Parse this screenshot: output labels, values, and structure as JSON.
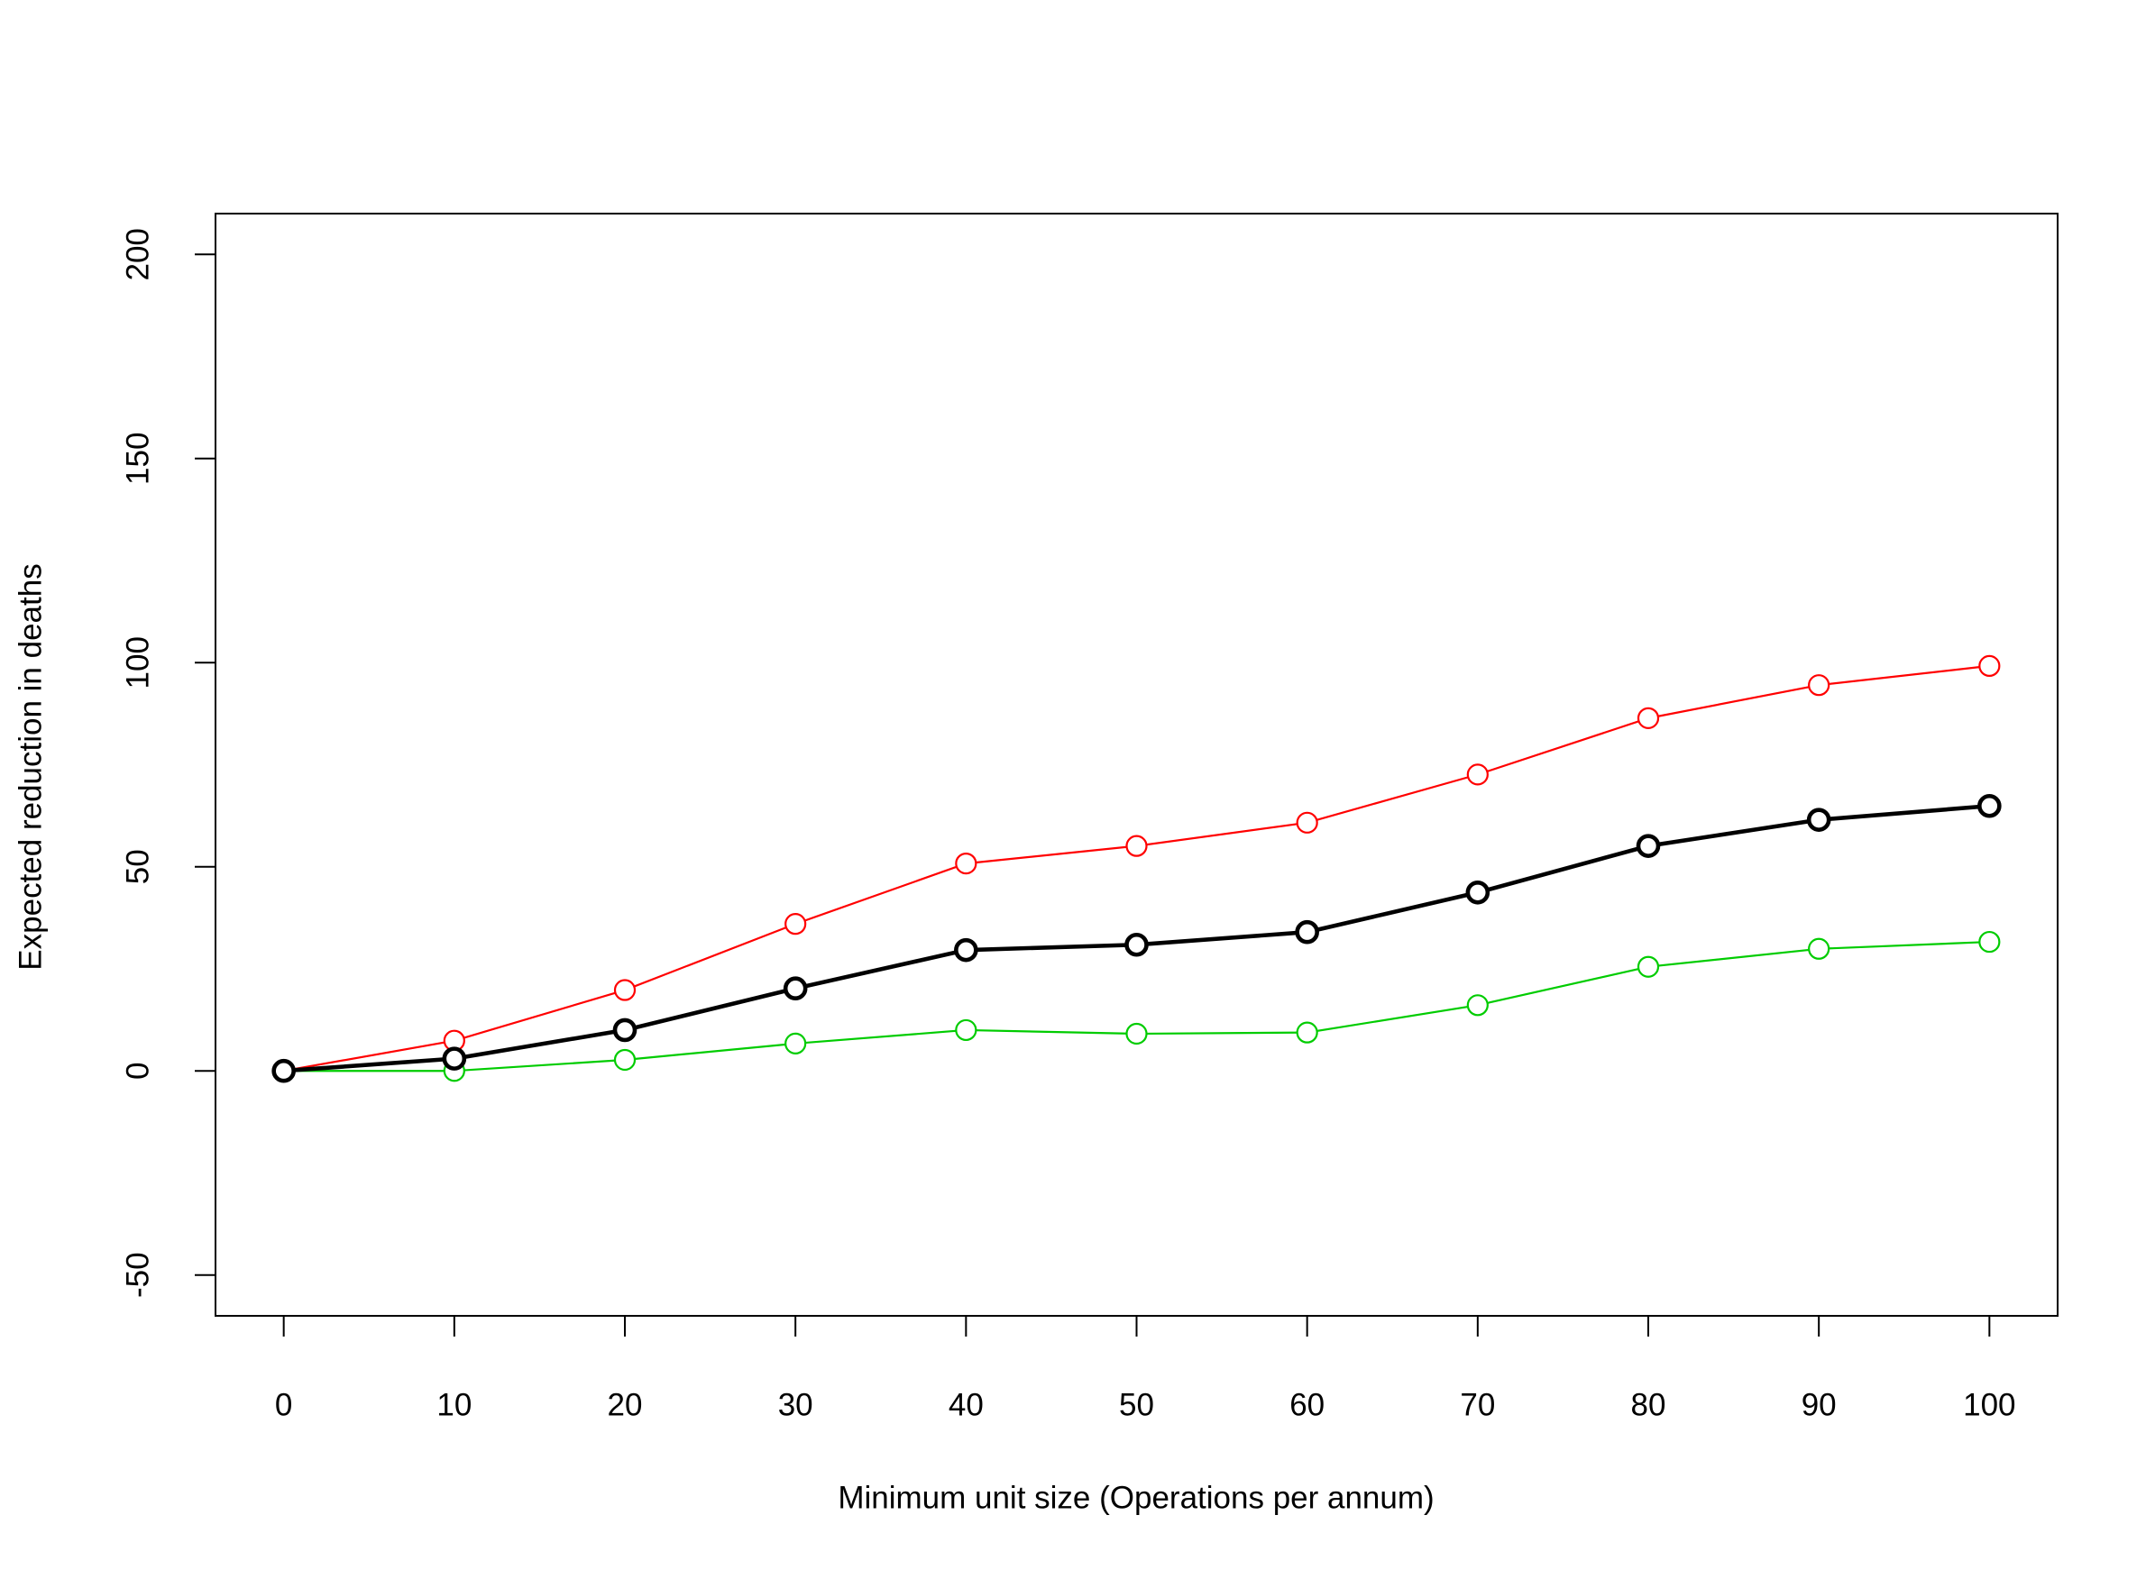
{
  "chart_data": {
    "type": "line",
    "x_label": "Minimum unit size (Operations per annum)",
    "y_label": "Expected reduction in deaths",
    "x": [
      0,
      10,
      20,
      30,
      40,
      50,
      60,
      70,
      80,
      90,
      100
    ],
    "series": [
      {
        "color": "#ff0000",
        "line_width": 2.2,
        "values": [
          0,
          7.4,
          19.8,
          36,
          50.8,
          55.1,
          60.8,
          72.6,
          86.4,
          94.5,
          99.2
        ]
      },
      {
        "color": "#00cc00",
        "line_width": 2.2,
        "values": [
          0,
          0,
          2.7,
          6.7,
          10,
          9.1,
          9.4,
          16.1,
          25.5,
          29.9,
          31.6
        ]
      },
      {
        "color": "#000000",
        "line_width": 4.6,
        "values": [
          0,
          3,
          10,
          20.2,
          29.6,
          30.9,
          34,
          43.7,
          55.1,
          61.5,
          64.9
        ]
      }
    ],
    "xlim": [
      -4,
      104
    ],
    "xticks": [
      0,
      10,
      20,
      30,
      40,
      50,
      60,
      70,
      80,
      90,
      100
    ],
    "ylim": [
      -60,
      210
    ],
    "yticks": [
      -50,
      0,
      50,
      100,
      150,
      200
    ],
    "grid": false
  }
}
